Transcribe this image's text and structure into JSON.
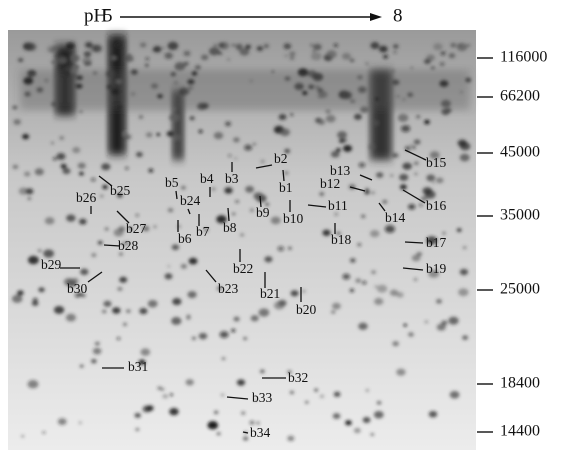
{
  "header": {
    "ph_label": "pH",
    "ph_start": "5",
    "ph_end": "8"
  },
  "mw_markers": [
    "116000",
    "66200",
    "45000",
    "35000",
    "25000",
    "18400",
    "14400"
  ],
  "spots": [
    "b1",
    "b2",
    "b3",
    "b4",
    "b5",
    "b6",
    "b7",
    "b8",
    "b9",
    "b10",
    "b11",
    "b12",
    "b13",
    "b14",
    "b15",
    "b16",
    "b17",
    "b18",
    "b19",
    "b20",
    "b21",
    "b22",
    "b23",
    "b24",
    "b25",
    "b26",
    "b27",
    "b28",
    "b29",
    "b30",
    "b31",
    "b32",
    "b33",
    "b34"
  ]
}
